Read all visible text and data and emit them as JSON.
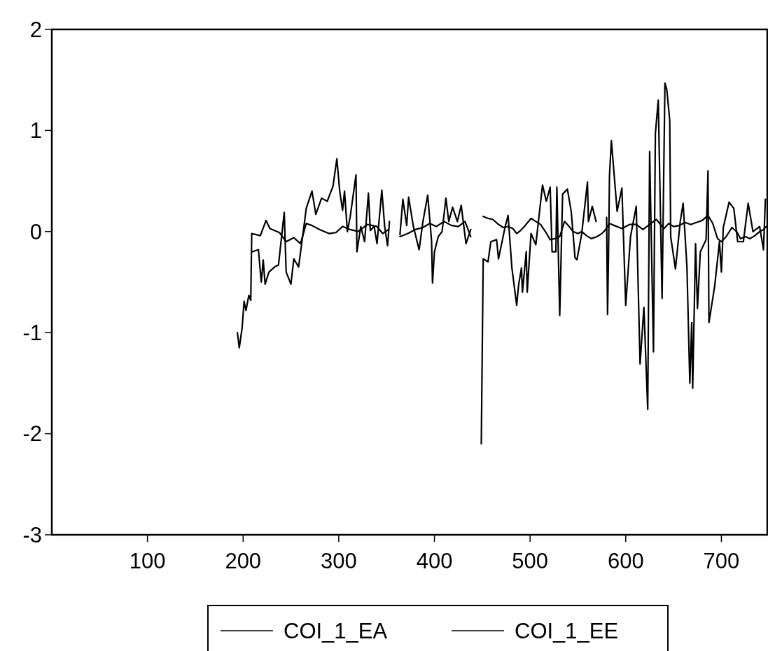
{
  "chart_data": {
    "type": "line",
    "xlim": [
      0,
      748
    ],
    "xticks": [
      100,
      200,
      300,
      400,
      500,
      600,
      700
    ],
    "ylim": [
      -3,
      2
    ],
    "yticks": [
      -3,
      -2,
      -1,
      0,
      1,
      2
    ],
    "grid": false,
    "legend": "bottom",
    "line_style": "solid",
    "marker": "none",
    "series": [
      {
        "name": "COI_1_EA",
        "color": "#000000",
        "x": [
          194,
          196,
          199,
          201,
          203,
          206,
          208,
          209,
          218,
          224,
          228,
          238,
          245,
          253,
          260,
          266,
          272,
          280,
          290,
          297,
          304,
          312,
          320,
          330,
          340,
          346,
          352,
          364,
          372,
          380,
          388,
          395,
          402,
          410,
          418,
          425,
          432,
          438,
          451,
          456,
          461,
          467,
          472,
          477,
          482,
          486,
          490,
          494,
          501,
          506,
          511,
          516,
          521,
          526,
          531,
          536,
          540,
          545,
          550,
          554,
          559,
          564,
          570,
          575,
          579,
          583,
          588,
          596,
          604,
          611,
          618,
          625,
          632,
          640,
          645,
          650,
          656,
          662,
          668,
          674,
          680,
          686,
          691,
          696,
          700,
          705,
          711,
          716,
          720,
          725,
          730,
          735,
          740,
          744,
          747
        ],
        "values": [
          -1.0,
          -1.15,
          -0.95,
          -0.69,
          -0.78,
          -0.63,
          -0.68,
          -0.02,
          -0.04,
          0.11,
          0.03,
          -0.01,
          -0.1,
          -0.06,
          -0.12,
          0.08,
          0.06,
          0.02,
          -0.02,
          -0.01,
          0.05,
          0.02,
          0.0,
          0.07,
          0.05,
          -0.02,
          0.02,
          -0.05,
          -0.02,
          0.02,
          0.04,
          0.08,
          0.05,
          0.1,
          0.06,
          0.05,
          0.1,
          -0.05,
          0.15,
          0.13,
          0.12,
          0.07,
          0.04,
          0.05,
          0.03,
          -0.02,
          0.01,
          0.05,
          0.13,
          0.1,
          0.07,
          0.0,
          -0.08,
          -0.07,
          -0.05,
          0.1,
          0.06,
          0.0,
          -0.02,
          0.0,
          -0.04,
          -0.07,
          -0.05,
          -0.02,
          0.02,
          0.08,
          0.06,
          0.03,
          0.07,
          0.07,
          0.02,
          0.07,
          0.12,
          0.03,
          0.08,
          0.05,
          0.06,
          0.09,
          0.07,
          0.09,
          0.11,
          0.16,
          0.08,
          -0.07,
          -0.1,
          -0.05,
          0.04,
          0.0,
          -0.07,
          -0.05,
          -0.07,
          -0.04,
          0.0,
          0.02,
          0.05
        ]
      },
      {
        "name": "COI_1_EE",
        "color": "#000000",
        "x": [
          209,
          216,
          219,
          221,
          223,
          227,
          233,
          237,
          243,
          245,
          250,
          253,
          258,
          264,
          266,
          272,
          276,
          282,
          288,
          294,
          298,
          301,
          304,
          306,
          309,
          312,
          318,
          319,
          323,
          327,
          331,
          333,
          337,
          340,
          345,
          348,
          351,
          353,
          364,
          367,
          371,
          373,
          378,
          384,
          388,
          393,
          397,
          398,
          400,
          404,
          408,
          412,
          415,
          419,
          424,
          428,
          433,
          438,
          449,
          451,
          456,
          459,
          465,
          467,
          474,
          477,
          481,
          486,
          488,
          491,
          492,
          496,
          497,
          501,
          506,
          513,
          517,
          521,
          523,
          527,
          528,
          531,
          534,
          539,
          543,
          547,
          549,
          554,
          560,
          561,
          565,
          569,
          580,
          581,
          582,
          583,
          585,
          591,
          596,
          600,
          605,
          611,
          615,
          619,
          623,
          625,
          629,
          631,
          634,
          638,
          641,
          643,
          646,
          647,
          652,
          657,
          660,
          664,
          667,
          669,
          670,
          673,
          675,
          678,
          684,
          686,
          687,
          693,
          698,
          700,
          702,
          708,
          713,
          717,
          723,
          728,
          733,
          740,
          744,
          746
        ],
        "values": [
          -0.2,
          -0.18,
          -0.5,
          -0.28,
          -0.52,
          -0.4,
          -0.35,
          -0.33,
          0.19,
          -0.4,
          -0.52,
          -0.27,
          -0.35,
          0.08,
          0.23,
          0.4,
          0.17,
          0.33,
          0.3,
          0.45,
          0.72,
          0.4,
          0.21,
          0.4,
          0.0,
          0.15,
          0.56,
          -0.2,
          0.05,
          -0.1,
          0.38,
          0.01,
          0.05,
          -0.12,
          0.41,
          0.05,
          -0.14,
          0.1,
          -0.03,
          0.32,
          0.06,
          0.34,
          0.05,
          -0.18,
          0.1,
          0.36,
          -0.09,
          -0.51,
          -0.2,
          -0.05,
          0.0,
          0.33,
          0.1,
          0.24,
          0.1,
          0.26,
          -0.12,
          0.02,
          -2.1,
          -0.27,
          -0.3,
          -0.1,
          -0.08,
          -0.27,
          0.05,
          0.16,
          -0.36,
          -0.73,
          -0.53,
          -0.36,
          -0.6,
          -0.2,
          -0.6,
          -0.02,
          -0.13,
          0.46,
          0.3,
          0.44,
          -0.2,
          -0.2,
          0.44,
          -0.83,
          0.37,
          0.42,
          0.2,
          -0.26,
          -0.28,
          -0.02,
          0.49,
          0.1,
          0.25,
          0.1,
          0.14,
          -0.82,
          -0.24,
          0.55,
          0.9,
          0.2,
          0.43,
          -0.73,
          -0.05,
          0.25,
          -1.31,
          -0.75,
          -1.76,
          0.79,
          -1.19,
          0.97,
          1.3,
          -0.66,
          1.47,
          1.4,
          1.1,
          -0.05,
          -0.37,
          0.1,
          0.28,
          -0.35,
          -1.5,
          -0.9,
          -1.55,
          -0.12,
          -0.76,
          -0.2,
          -0.08,
          0.6,
          -0.9,
          -0.54,
          -0.1,
          -0.4,
          0.04,
          0.29,
          0.23,
          -0.1,
          -0.1,
          0.28,
          0.0,
          0.05,
          -0.18,
          0.32
        ]
      }
    ]
  }
}
